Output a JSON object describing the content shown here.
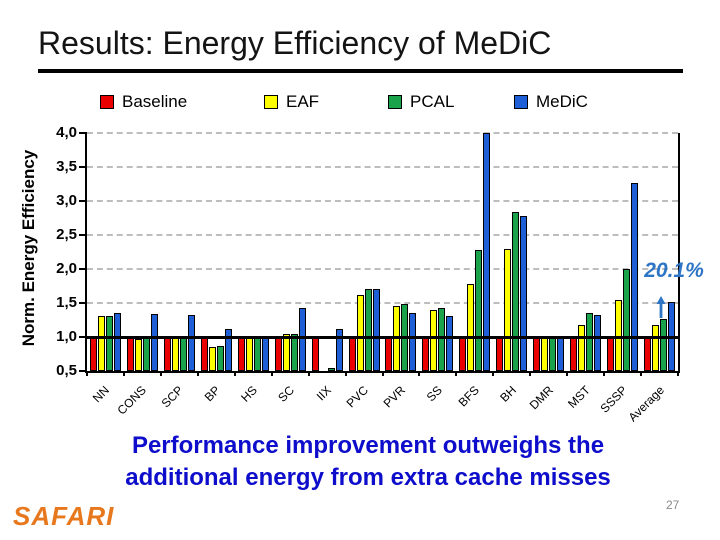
{
  "slide": {
    "title": "Results: Energy Efficiency of MeDiC",
    "message_line1": "Performance improvement outweighs the",
    "message_line2": "additional energy from extra cache misses",
    "footer_logo": "SAFARI",
    "page_number": "27"
  },
  "chart_data": {
    "type": "bar",
    "title": "Results: Energy Efficiency of MeDiC",
    "xlabel": "",
    "ylabel": "Norm. Energy Efficiency",
    "ylim": [
      0.5,
      4.0
    ],
    "ytick_step": 0.5,
    "ytick_labels": [
      "0,5",
      "1,0",
      "1,5",
      "2,0",
      "2,5",
      "3,0",
      "3,5",
      "4,0"
    ],
    "grid": true,
    "gridline_color": "#BDBDBD",
    "baseline_value": 1.0,
    "legend_position": "top",
    "categories": [
      "NN",
      "CONS",
      "SCP",
      "BP",
      "HS",
      "SC",
      "IIX",
      "PVC",
      "PVR",
      "SS",
      "BFS",
      "BH",
      "DMR",
      "MST",
      "SSSP",
      "Average"
    ],
    "series": [
      {
        "name": "Baseline",
        "color": "#EA0000",
        "values": [
          1.0,
          1.0,
          1.0,
          1.0,
          1.0,
          1.0,
          1.0,
          1.0,
          1.0,
          1.0,
          1.0,
          1.0,
          1.0,
          1.0,
          1.0,
          1.0
        ]
      },
      {
        "name": "EAF",
        "color": "#FFFF00",
        "values": [
          1.31,
          0.97,
          0.98,
          0.85,
          1.0,
          1.04,
          0.5,
          1.62,
          1.45,
          1.39,
          1.78,
          2.29,
          1.0,
          1.17,
          1.55,
          1.17
        ]
      },
      {
        "name": "PCAL",
        "color": "#1AA34A",
        "values": [
          1.31,
          1.0,
          1.0,
          0.87,
          1.0,
          1.05,
          0.55,
          1.71,
          1.49,
          1.42,
          2.28,
          2.84,
          1.0,
          1.36,
          2.0,
          1.27
        ]
      },
      {
        "name": "MeDiC",
        "color": "#1E5FD7",
        "values": [
          1.36,
          1.34,
          1.32,
          1.12,
          1.0,
          1.42,
          1.12,
          1.71,
          1.36,
          1.31,
          4.0,
          2.78,
          1.0,
          1.33,
          3.27,
          1.52
        ]
      }
    ],
    "annotation": {
      "text": "20.1%",
      "color": "#2E75C6",
      "target": "Average"
    }
  }
}
